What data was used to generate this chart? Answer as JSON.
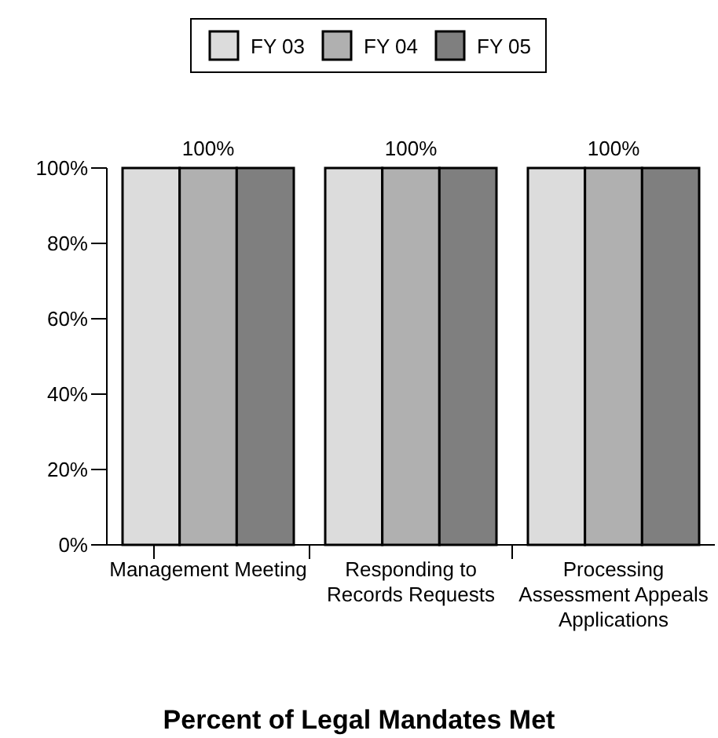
{
  "chart_data": {
    "type": "bar",
    "title": "Percent of Legal Mandates Met",
    "categories": [
      "Management Meeting",
      "Responding to Records Requests",
      "Processing Assessment Appeals Applications"
    ],
    "series": [
      {
        "name": "FY 03",
        "color": "#dcdcdc",
        "values": [
          100,
          100,
          100
        ]
      },
      {
        "name": "FY 04",
        "color": "#b0b0b0",
        "values": [
          100,
          100,
          100
        ],
        "value_labels": [
          "100%",
          "100%",
          "100%"
        ]
      },
      {
        "name": "FY 05",
        "color": "#7f7f7f",
        "values": [
          100,
          100,
          100
        ]
      }
    ],
    "ylim": [
      0,
      100
    ],
    "yticks": [
      {
        "value": 0,
        "label": "0%"
      },
      {
        "value": 20,
        "label": "20%"
      },
      {
        "value": 40,
        "label": "40%"
      },
      {
        "value": 60,
        "label": "60%"
      },
      {
        "value": 80,
        "label": "80%"
      },
      {
        "value": 100,
        "label": "100%"
      }
    ],
    "grid": false,
    "legend": "top"
  }
}
